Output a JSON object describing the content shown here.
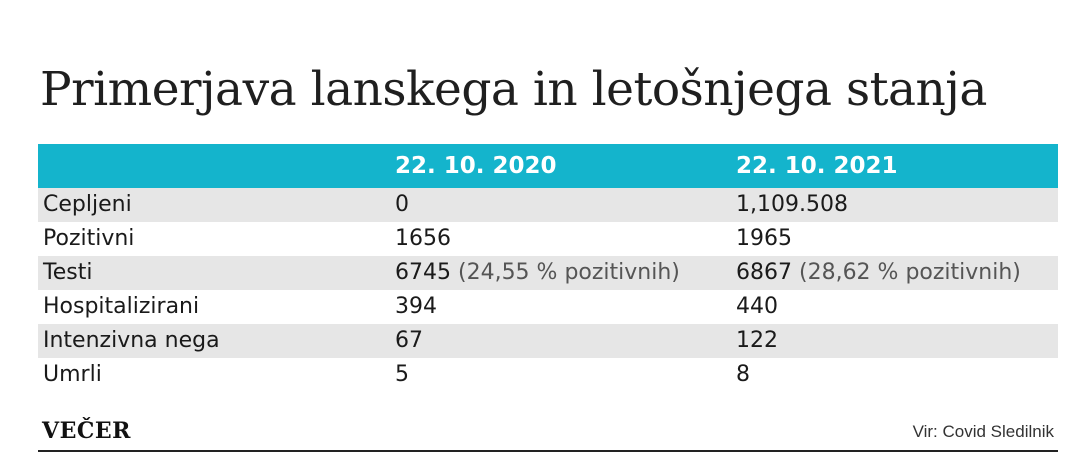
{
  "title": "Primerjava lanskega in letošnjega stanja",
  "table": {
    "headers": [
      "",
      "22. 10. 2020",
      "22. 10. 2021"
    ],
    "rows": [
      {
        "label": "Cepljeni",
        "v2020": "0",
        "v2020_note": "",
        "v2021": "1,109.508",
        "v2021_note": ""
      },
      {
        "label": "Pozitivni",
        "v2020": "1656",
        "v2020_note": "",
        "v2021": "1965",
        "v2021_note": ""
      },
      {
        "label": "Testi",
        "v2020": "6745",
        "v2020_note": " (24,55 % pozitivnih)",
        "v2021": "6867",
        "v2021_note": " (28,62 % pozitivnih)"
      },
      {
        "label": "Hospitalizirani",
        "v2020": "394",
        "v2020_note": "",
        "v2021": "440",
        "v2021_note": ""
      },
      {
        "label": "Intenzivna nega",
        "v2020": "67",
        "v2020_note": "",
        "v2021": "122",
        "v2021_note": ""
      },
      {
        "label": "Umrli",
        "v2020": "5",
        "v2020_note": "",
        "v2021": "8",
        "v2021_note": ""
      }
    ]
  },
  "footer": {
    "logo": "VEČER",
    "source": "Vir: Covid Sledilnik"
  },
  "colors": {
    "header_bg": "#14b4cc",
    "row_shade": "#e6e6e6"
  }
}
